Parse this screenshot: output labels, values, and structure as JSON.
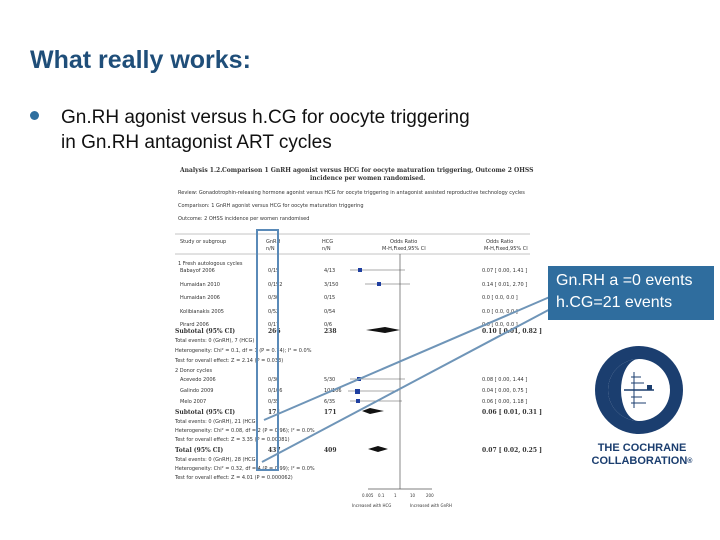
{
  "slide": {
    "title": "What really works:",
    "bullet_line1": "Gn.RH agonist versus h.CG for oocyte triggering",
    "bullet_line2": "in Gn.RH antagonist ART cycles"
  },
  "callout": {
    "line1": "Gn.RH a =0 events",
    "line2": "h.CG=21 events",
    "color": "#2f6d9e"
  },
  "logo": {
    "line1": "THE COCHRANE",
    "line2": "COLLABORATION",
    "mark": "®"
  },
  "figure": {
    "analysis": "Analysis 1.2.",
    "comparison_title": "Comparison 1 GnRH agonist versus HCG for oocyte maturation triggering, Outcome 2 OHSS",
    "comparison_title2": "incidence per women randomised.",
    "review": "Review:   Gonadotrophin-releasing hormone agonist versus HCG for oocyte triggering in antagonist assisted reproductive technology cycles",
    "comparison": "Comparison:   1 GnRH agonist versus HCG for oocyte maturation triggering",
    "outcome": "Outcome:   2 OHSS incidence per women randomised",
    "col_study": "Study or subgroup",
    "col_gnrh": "GnRH",
    "col_gnrh_sub": "n/N",
    "col_hcg": "HCG",
    "col_hcg_sub": "n/N",
    "col_or": "Odds Ratio",
    "col_or_sub": "M-H,Fixed,95% CI",
    "col_or2": "Odds Ratio",
    "col_or2_sub": "M-H,Fixed,95% CI",
    "group1": "1 Fresh autologous cycles",
    "group1_rows": [
      {
        "study": "Babayof 2006",
        "gnrh": "0/15",
        "hcg": "4/13",
        "or": "0.07 [ 0.00, 1.41 ]"
      },
      {
        "study": "Humaidan 2010",
        "gnrh": "0/152",
        "hcg": "3/150",
        "or": "0.14 [ 0.01, 2.70 ]"
      },
      {
        "study": "Humaidan 2006",
        "gnrh": "0/30",
        "hcg": "0/15",
        "or": "0.0 [ 0.0, 0.0 ]"
      },
      {
        "study": "Kolibianakis 2005",
        "gnrh": "0/52",
        "hcg": "0/54",
        "or": "0.0 [ 0.0, 0.0 ]"
      },
      {
        "study": "Pirard 2006",
        "gnrh": "0/17",
        "hcg": "0/6",
        "or": "0.0 [ 0.0, 0.0 ]"
      }
    ],
    "sub1_label": "Subtotal (95% CI)",
    "sub1_gnrh": "266",
    "sub1_hcg": "238",
    "sub1_or": "0.10 [ 0.01, 0.82 ]",
    "sub1_events": "Total events: 0 (GnRH), 7 (HCG)",
    "sub1_het": "Heterogeneity: Chi² = 0.1, df = 1 (P = 0.74); I² = 0.0%",
    "sub1_test": "Test for overall effect: Z = 2.14 (P = 0.033)",
    "group2": "2 Donor cycles",
    "group2_rows": [
      {
        "study": "Acevedo 2006",
        "gnrh": "0/30",
        "hcg": "5/30",
        "or": "0.08 [ 0.00, 1.44 ]"
      },
      {
        "study": "Galindo 2009",
        "gnrh": "0/106",
        "hcg": "10/106",
        "or": "0.04 [ 0.00, 0.75 ]"
      },
      {
        "study": "Melo 2007",
        "gnrh": "0/35",
        "hcg": "6/35",
        "or": "0.06 [ 0.00, 1.18 ]"
      }
    ],
    "sub2_label": "Subtotal (95% CI)",
    "sub2_gnrh": "171",
    "sub2_hcg": "171",
    "sub2_or": "0.06 [ 0.01, 0.31 ]",
    "sub2_events": "Total events: 0 (GnRH), 21 (HCG)",
    "sub2_het": "Heterogeneity: Chi² = 0.08, df = 2 (P = 0.96); I² = 0.0%",
    "sub2_test": "Test for overall effect: Z = 3.35 (P = 0.00081)",
    "total_label": "Total (95% CI)",
    "total_gnrh": "437",
    "total_hcg": "409",
    "total_or": "0.07 [ 0.02, 0.25 ]",
    "total_events": "Total events: 0 (GnRH), 28 (HCG)",
    "total_het": "Heterogeneity: Chi² = 0.32, df = 4 (P = 0.99); I² = 0.0%",
    "total_test": "Test for overall effect: Z = 4.01 (P = 0.000062)",
    "axis_ticks": [
      "0.005",
      "0.1",
      "1",
      "10",
      "200"
    ],
    "favours_left": "Increased with HCG",
    "favours_right": "Increased with GnRH"
  }
}
